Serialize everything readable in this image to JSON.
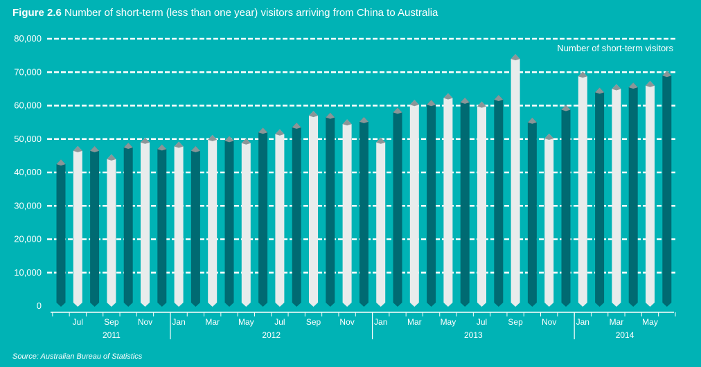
{
  "figure": {
    "label": "Figure 2.6",
    "title": "Number of short-term (less than one year) visitors arriving from China to Australia",
    "source": "Source: Australian Bureau of Statistics"
  },
  "colors": {
    "background": "#00b3b5",
    "dark_bar": "#006a72",
    "light_bar": "#e8ecec",
    "bar_top": "#8a9698",
    "text": "#ffffff"
  },
  "chart_data": {
    "type": "bar",
    "series_label": "Number of short-term visitors",
    "ylim": [
      0,
      80000
    ],
    "yticks": [
      0,
      10000,
      20000,
      30000,
      40000,
      50000,
      60000,
      70000,
      80000
    ],
    "ytick_labels": [
      "0",
      "10,000",
      "20,000",
      "30,000",
      "40,000",
      "50,000",
      "60,000",
      "70,000",
      "80,000"
    ],
    "grid": "dashed horizontal",
    "categories": [
      "Jun 2011",
      "Jul 2011",
      "Aug 2011",
      "Sep 2011",
      "Oct 2011",
      "Nov 2011",
      "Dec 2011",
      "Jan 2012",
      "Feb 2012",
      "Mar 2012",
      "Apr 2012",
      "May 2012",
      "Jun 2012",
      "Jul 2012",
      "Aug 2012",
      "Sep 2012",
      "Oct 2012",
      "Nov 2012",
      "Dec 2012",
      "Jan 2013",
      "Feb 2013",
      "Mar 2013",
      "Apr 2013",
      "May 2013",
      "Jun 2013",
      "Jul 2013",
      "Aug 2013",
      "Sep 2013",
      "Oct 2013",
      "Nov 2013",
      "Dec 2013",
      "Jan 2014",
      "Feb 2014",
      "Mar 2014",
      "Apr 2014",
      "May 2014",
      "Jun 2014"
    ],
    "values": [
      43500,
      47500,
      47500,
      45000,
      48500,
      50000,
      48000,
      48800,
      47500,
      50800,
      50500,
      49800,
      53000,
      52500,
      54500,
      58000,
      57500,
      55500,
      56200,
      50000,
      59000,
      61300,
      61300,
      63300,
      62000,
      60800,
      62800,
      75000,
      56000,
      51200,
      59800,
      69800,
      65000,
      66000,
      66500,
      67000,
      70000
    ],
    "bar_shades": [
      "dark",
      "light",
      "dark",
      "light",
      "dark",
      "light",
      "dark",
      "light",
      "dark",
      "light",
      "dark",
      "light",
      "dark",
      "light",
      "dark",
      "light",
      "dark",
      "light",
      "dark",
      "light",
      "dark",
      "light",
      "dark",
      "light",
      "dark",
      "light",
      "dark",
      "light",
      "dark",
      "light",
      "dark",
      "light",
      "dark",
      "light",
      "dark",
      "light",
      "dark"
    ],
    "month_labels": [
      {
        "label": "Jul",
        "index": 1
      },
      {
        "label": "Sep",
        "index": 3
      },
      {
        "label": "Nov",
        "index": 5
      },
      {
        "label": "Jan",
        "index": 7
      },
      {
        "label": "Mar",
        "index": 9
      },
      {
        "label": "May",
        "index": 11
      },
      {
        "label": "Jul",
        "index": 13
      },
      {
        "label": "Sep",
        "index": 15
      },
      {
        "label": "Nov",
        "index": 17
      },
      {
        "label": "Jan",
        "index": 19
      },
      {
        "label": "Mar",
        "index": 21
      },
      {
        "label": "May",
        "index": 23
      },
      {
        "label": "Jul",
        "index": 25
      },
      {
        "label": "Sep",
        "index": 27
      },
      {
        "label": "Nov",
        "index": 29
      },
      {
        "label": "Jan",
        "index": 31
      },
      {
        "label": "Mar",
        "index": 33
      },
      {
        "label": "May",
        "index": 35
      }
    ],
    "years": [
      {
        "label": "2011",
        "start": 0,
        "end": 6
      },
      {
        "label": "2012",
        "start": 7,
        "end": 18
      },
      {
        "label": "2013",
        "start": 19,
        "end": 30
      },
      {
        "label": "2014",
        "start": 31,
        "end": 36
      }
    ]
  }
}
